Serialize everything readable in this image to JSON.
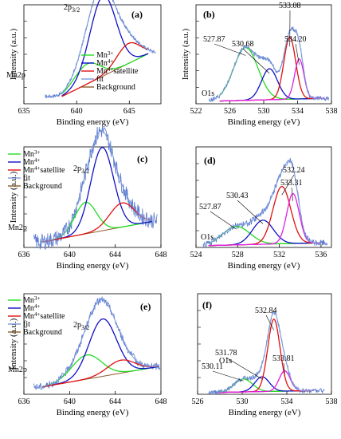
{
  "colors": {
    "mn3": "#22dd22",
    "mn4": "#1010c8",
    "satellite": "#e01010",
    "fit": "#7a9ad8",
    "background": "#8b5a2b",
    "o1s_extra": "#e020e0",
    "raw": "#5a7ad0"
  },
  "chart_data": [
    {
      "id": "a",
      "type": "line",
      "panel_label": "(a)",
      "xlabel": "Binding energy (eV)",
      "ylabel": "Intensity (a.u.)",
      "xlim": [
        635,
        648
      ],
      "xticks": [
        635,
        640,
        645
      ],
      "tick_labels": [
        "635",
        "640",
        "645"
      ],
      "element_label": "Mn2p",
      "peak_label": "2p3/2",
      "peak_label_main": "2p",
      "peak_label_sub": "3/2",
      "legend": [
        "Mn3+",
        "Mn4+",
        "Mn4+satellite",
        "fit",
        "Background"
      ],
      "legend_main": [
        "Mn",
        "Mn",
        "Mn",
        "fit",
        "Background"
      ],
      "legend_sup": [
        "3+",
        "4+",
        "4+",
        "",
        ""
      ],
      "legend_rest": [
        "",
        "",
        "satellite",
        "",
        ""
      ],
      "range": [
        638.6,
        646.8
      ],
      "background": {
        "from": 0.08,
        "to": 0.55
      },
      "peaks": [
        {
          "series": "mn3",
          "center": 641.0,
          "height": 0.22,
          "width": 1.2
        },
        {
          "series": "mn4",
          "center": 642.5,
          "height": 0.88,
          "width": 1.25
        },
        {
          "series": "satellite",
          "center": 644.9,
          "height": 0.22,
          "width": 1.1
        }
      ],
      "noise": 0.02
    },
    {
      "id": "b",
      "type": "line",
      "panel_label": "(b)",
      "xlabel": "Binding energy (eV)",
      "ylabel": "Intensity (a.u.)",
      "xlim": [
        522,
        538
      ],
      "xticks": [
        522,
        526,
        530,
        534,
        538
      ],
      "tick_labels": [
        "522",
        "526",
        "530",
        "534",
        "538"
      ],
      "element_label": "O1s",
      "range": [
        524.8,
        537.2
      ],
      "background": {
        "from": 0.03,
        "to": 0.06
      },
      "peaks": [
        {
          "series": "mn3",
          "center": 527.87,
          "height": 0.58,
          "width": 1.45
        },
        {
          "series": "mn4",
          "center": 530.68,
          "height": 0.34,
          "width": 0.95
        },
        {
          "series": "satellite",
          "center": 533.08,
          "height": 0.68,
          "width": 0.7
        },
        {
          "series": "o1s_extra",
          "center": 534.2,
          "height": 0.44,
          "width": 0.55
        }
      ],
      "annotations": [
        "527.87",
        "530.68",
        "533.08",
        "534.20"
      ],
      "noise": 0.025
    },
    {
      "id": "c",
      "type": "line",
      "panel_label": "(c)",
      "xlabel": "Binding energy (eV)",
      "ylabel": "Intensity (a.u.)",
      "xlim": [
        636,
        648
      ],
      "xticks": [
        636,
        640,
        644,
        648
      ],
      "tick_labels": [
        "636",
        "640",
        "644",
        "648"
      ],
      "element_label": "Mn2p",
      "peak_label": "2p3/2",
      "peak_label_main": "2p",
      "peak_label_sub": "3/2",
      "legend": [
        "Mn3+",
        "Mn4+",
        "Mn4+satellite",
        "fit",
        "Background"
      ],
      "legend_main": [
        "Mn",
        "Mn",
        "Mn",
        "fit",
        "Background"
      ],
      "legend_sup": [
        "3+",
        "4+",
        "4+",
        "",
        ""
      ],
      "legend_rest": [
        "",
        "",
        "satellite",
        "",
        ""
      ],
      "range": [
        637.6,
        647.2
      ],
      "background": {
        "from": 0.06,
        "to": 0.28
      },
      "peaks": [
        {
          "series": "mn3",
          "center": 641.4,
          "height": 0.34,
          "width": 0.95
        },
        {
          "series": "mn4",
          "center": 642.85,
          "height": 0.9,
          "width": 1.0
        },
        {
          "series": "satellite",
          "center": 644.6,
          "height": 0.26,
          "width": 1.1
        }
      ],
      "noise": 0.05
    },
    {
      "id": "d",
      "type": "line",
      "panel_label": "(d)",
      "xlabel": "Binding energy (eV)",
      "ylabel": "",
      "xlim": [
        524,
        537
      ],
      "xticks": [
        524,
        528,
        532,
        536
      ],
      "tick_labels": [
        "524",
        "528",
        "532",
        "536"
      ],
      "element_label": "O1s",
      "range": [
        525.2,
        536.0
      ],
      "background": {
        "from": 0.02,
        "to": 0.05
      },
      "peaks": [
        {
          "series": "mn3",
          "center": 527.87,
          "height": 0.2,
          "width": 1.3
        },
        {
          "series": "mn4",
          "center": 530.43,
          "height": 0.26,
          "width": 1.0
        },
        {
          "series": "satellite",
          "center": 532.24,
          "height": 0.62,
          "width": 0.85
        },
        {
          "series": "o1s_extra",
          "center": 533.31,
          "height": 0.54,
          "width": 0.6
        }
      ],
      "annotations": [
        "527.87",
        "530.43",
        "532.24",
        "533.31"
      ],
      "noise": 0.035
    },
    {
      "id": "e",
      "type": "line",
      "panel_label": "(e)",
      "xlabel": "Binding energy (eV)",
      "ylabel": "Intensity (a.u.)",
      "xlim": [
        636,
        648
      ],
      "xticks": [
        636,
        640,
        644,
        648
      ],
      "tick_labels": [
        "636",
        "640",
        "644",
        "648"
      ],
      "element_label": "Mn2p",
      "peak_label": "2p3/2",
      "peak_label_main": "2p",
      "peak_label_sub": "3/2",
      "legend": [
        "Mn3+",
        "Mn4+",
        "Mn4+satellite",
        "fit",
        "Background"
      ],
      "legend_main": [
        "Mn",
        "Mn",
        "Mn",
        "fit",
        "Background"
      ],
      "legend_sup": [
        "3+",
        "4+",
        "4+",
        "",
        ""
      ],
      "legend_rest": [
        "",
        "",
        "satellite",
        "",
        ""
      ],
      "range": [
        637.6,
        647.8
      ],
      "background": {
        "from": 0.08,
        "to": 0.3
      },
      "peaks": [
        {
          "series": "mn3",
          "center": 641.5,
          "height": 0.26,
          "width": 1.3
        },
        {
          "series": "mn4",
          "center": 642.9,
          "height": 0.62,
          "width": 1.2
        },
        {
          "series": "satellite",
          "center": 644.5,
          "height": 0.14,
          "width": 1.2
        }
      ],
      "noise": 0.04
    },
    {
      "id": "f",
      "type": "line",
      "panel_label": "(f)",
      "xlabel": "Binding energy (eV)",
      "ylabel": "",
      "xlim": [
        526,
        538
      ],
      "xticks": [
        526,
        530,
        534,
        538
      ],
      "tick_labels": [
        "526",
        "530",
        "534",
        "538"
      ],
      "element_label": "O1s",
      "range": [
        527.8,
        536.4
      ],
      "background": {
        "from": 0.02,
        "to": 0.04
      },
      "peaks": [
        {
          "series": "mn3",
          "center": 530.11,
          "height": 0.14,
          "width": 0.8
        },
        {
          "series": "mn4",
          "center": 531.78,
          "height": 0.16,
          "width": 0.65
        },
        {
          "series": "satellite",
          "center": 532.84,
          "height": 0.78,
          "width": 0.55
        },
        {
          "series": "o1s_extra",
          "center": 533.81,
          "height": 0.22,
          "width": 0.5
        }
      ],
      "annotations": [
        "530.11",
        "531.78",
        "532.84",
        "533.81"
      ],
      "noise": 0.025
    }
  ]
}
